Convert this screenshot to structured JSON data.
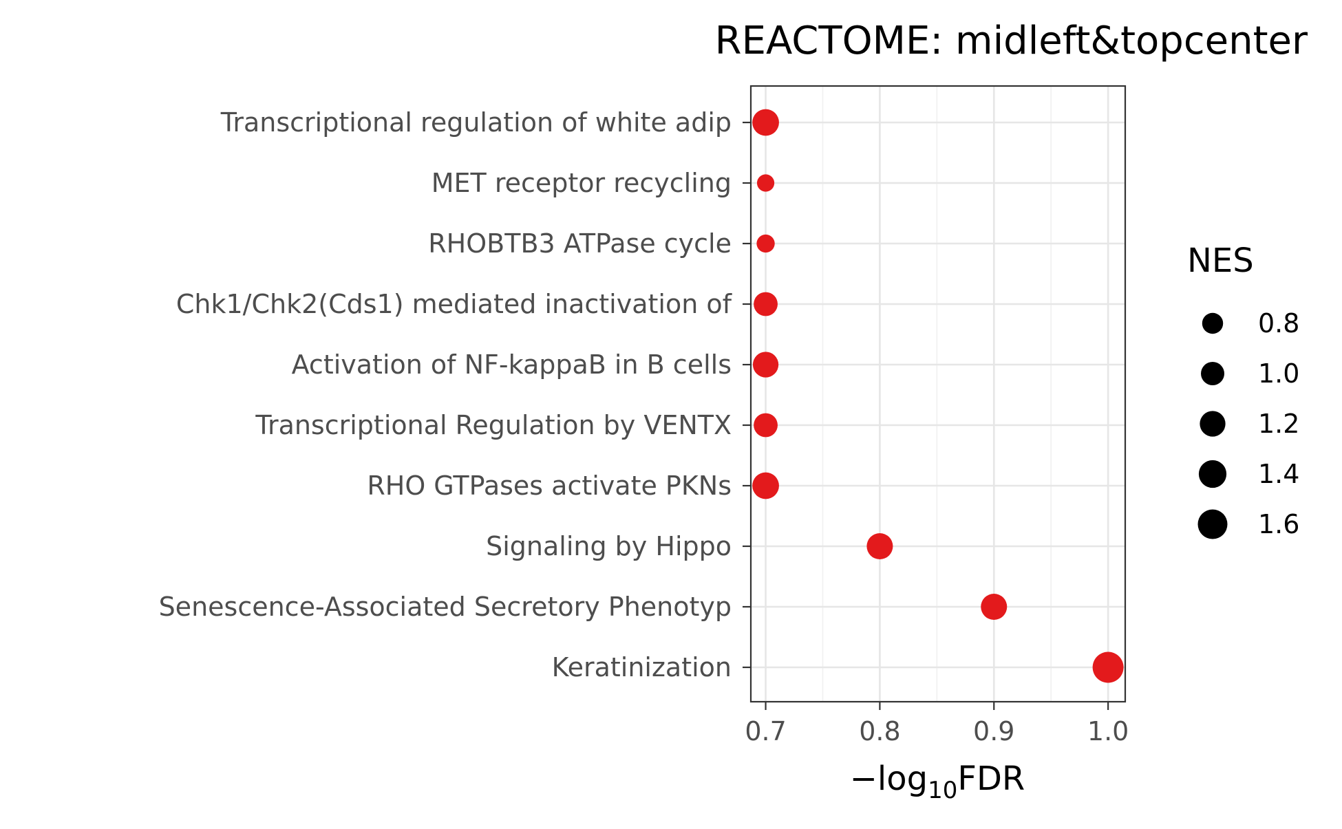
{
  "chart_data": {
    "type": "scatter",
    "title": "REACTOME: midleft&topcenter",
    "xlabel_main": "−log",
    "xlabel_sub": "10",
    "xlabel_tail": "FDR",
    "xlim": [
      0.687,
      1.015
    ],
    "xticks": [
      0.7,
      0.8,
      0.9,
      1.0
    ],
    "xtick_labels": [
      "0.7",
      "0.8",
      "0.9",
      "1.0"
    ],
    "grid": true,
    "point_color": "#e31a1c",
    "categories": [
      "Transcriptional regulation of white adip",
      "MET receptor recycling",
      "RHOBTB3 ATPase cycle",
      "Chk1/Chk2(Cds1) mediated inactivation of",
      "Activation of NF-kappaB in B cells",
      "Transcriptional Regulation by VENTX",
      "RHO GTPases activate PKNs",
      "Signaling by Hippo",
      "Senescence-Associated Secretory Phenotyp",
      "Keratinization"
    ],
    "x": [
      0.7,
      0.7,
      0.7,
      0.7,
      0.7,
      0.7,
      0.7,
      0.8,
      0.9,
      1.0
    ],
    "nes": [
      1.3,
      0.55,
      0.6,
      1.05,
      1.2,
      1.05,
      1.3,
      1.25,
      1.25,
      1.75
    ],
    "legend": {
      "title": "NES",
      "placement": "right",
      "values": [
        0.8,
        1.0,
        1.2,
        1.4,
        1.6
      ],
      "labels": [
        "0.8",
        "1.0",
        "1.2",
        "1.4",
        "1.6"
      ],
      "color": "#000000"
    }
  }
}
